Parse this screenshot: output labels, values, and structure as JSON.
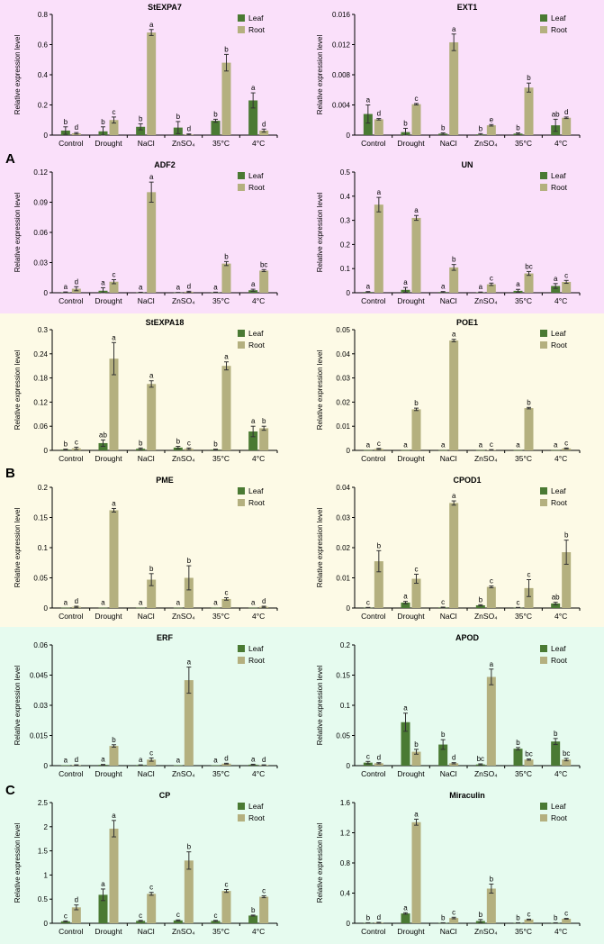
{
  "colors": {
    "leaf": "#4a7a33",
    "root": "#b4b07f",
    "bandA": "#fae0fa",
    "bandB": "#fdfae6",
    "bandC": "#e6fbef"
  },
  "figure": {
    "y_axis_label": "Relative expression level",
    "series_names": [
      "Leaf",
      "Root"
    ],
    "categories": [
      "Control",
      "Drought",
      "NaCl",
      "ZnSO₄",
      "35°C",
      "4°C"
    ],
    "panels": [
      "A",
      "B",
      "C"
    ]
  },
  "chart_data": [
    {
      "type": "bar",
      "panel": "A",
      "title": "StEXPA7",
      "ylim": [
        0,
        0.8
      ],
      "yticks": [
        "0",
        "0.2",
        "0.4",
        "0.6",
        "0.8"
      ],
      "categories": [
        "Control",
        "Drought",
        "NaCl",
        "ZnSO₄",
        "35°C",
        "4°C"
      ],
      "series": [
        {
          "name": "Leaf",
          "values": [
            0.03,
            0.025,
            0.055,
            0.05,
            0.095,
            0.23
          ],
          "errors": [
            0.025,
            0.03,
            0.02,
            0.04,
            0.01,
            0.05
          ],
          "letters": [
            "b",
            "b",
            "b",
            "b",
            "b",
            "a"
          ]
        },
        {
          "name": "Root",
          "values": [
            0.012,
            0.1,
            0.68,
            0.005,
            0.48,
            0.03
          ],
          "errors": [
            0.005,
            0.02,
            0.02,
            0.003,
            0.055,
            0.01
          ],
          "letters": [
            "d",
            "c",
            "a",
            "d",
            "b",
            "d"
          ]
        }
      ]
    },
    {
      "type": "bar",
      "panel": "A",
      "title": "EXT1",
      "ylim": [
        0,
        0.016
      ],
      "yticks": [
        "0",
        "0.004",
        "0.008",
        "0.012",
        "0.016"
      ],
      "categories": [
        "Control",
        "Drought",
        "NaCl",
        "ZnSO₄",
        "35°C",
        "4°C"
      ],
      "series": [
        {
          "name": "Leaf",
          "values": [
            0.0028,
            0.0004,
            0.0002,
            0.0001,
            0.0002,
            0.0013
          ],
          "errors": [
            0.0012,
            0.0005,
            0.0001,
            0.0001,
            0.0001,
            0.0008
          ],
          "letters": [
            "a",
            "b",
            "b",
            "b",
            "b",
            "ab"
          ]
        },
        {
          "name": "Root",
          "values": [
            0.0021,
            0.0041,
            0.0123,
            0.0013,
            0.0063,
            0.0023
          ],
          "errors": [
            0.0001,
            0.0001,
            0.0011,
            0.0001,
            0.0006,
            0.0001
          ],
          "letters": [
            "d",
            "c",
            "a",
            "e",
            "b",
            "d"
          ]
        }
      ]
    },
    {
      "type": "bar",
      "panel": "A",
      "title": "ADF2",
      "ylim": [
        0,
        0.12
      ],
      "yticks": [
        "0",
        "0.03",
        "0.06",
        "0.09",
        "0.12"
      ],
      "categories": [
        "Control",
        "Drought",
        "NaCl",
        "ZnSO₄",
        "35°C",
        "4°C"
      ],
      "series": [
        {
          "name": "Leaf",
          "values": [
            0.0005,
            0.002,
            0.0003,
            0.0002,
            0.0004,
            0.0025
          ],
          "errors": [
            0.0003,
            0.003,
            0.0002,
            0.0001,
            0.0002,
            0.001
          ],
          "letters": [
            "a",
            "a",
            "a",
            "a",
            "a",
            "a"
          ]
        },
        {
          "name": "Root",
          "values": [
            0.004,
            0.011,
            0.1,
            0.001,
            0.029,
            0.022
          ],
          "errors": [
            0.002,
            0.002,
            0.01,
            0.0005,
            0.002,
            0.001
          ],
          "letters": [
            "d",
            "c",
            "a",
            "d",
            "b",
            "bc"
          ]
        }
      ]
    },
    {
      "type": "bar",
      "panel": "A",
      "title": "UN",
      "ylim": [
        0,
        0.5
      ],
      "yticks": [
        "0",
        "0.1",
        "0.2",
        "0.3",
        "0.4",
        "0.5"
      ],
      "categories": [
        "Control",
        "Drought",
        "NaCl",
        "ZnSO₄",
        "35°C",
        "4°C"
      ],
      "series": [
        {
          "name": "Leaf",
          "values": [
            0.003,
            0.012,
            0.003,
            0.002,
            0.008,
            0.028
          ],
          "errors": [
            0.002,
            0.01,
            0.002,
            0.001,
            0.006,
            0.01
          ],
          "letters": [
            "a",
            "a",
            "a",
            "a",
            "a",
            "a"
          ]
        },
        {
          "name": "Root",
          "values": [
            0.365,
            0.31,
            0.105,
            0.035,
            0.08,
            0.045
          ],
          "errors": [
            0.03,
            0.01,
            0.012,
            0.005,
            0.008,
            0.006
          ],
          "letters": [
            "a",
            "a",
            "b",
            "c",
            "bc",
            "c"
          ]
        }
      ]
    },
    {
      "type": "bar",
      "panel": "B",
      "title": "StEXPA18",
      "ylim": [
        0,
        0.3
      ],
      "yticks": [
        "0",
        "0.06",
        "0.12",
        "0.18",
        "0.24",
        "0.3"
      ],
      "categories": [
        "Control",
        "Drought",
        "NaCl",
        "ZnSO₄",
        "35°C",
        "4°C"
      ],
      "series": [
        {
          "name": "Leaf",
          "values": [
            0.002,
            0.018,
            0.004,
            0.007,
            0.002,
            0.047
          ],
          "errors": [
            0.001,
            0.008,
            0.002,
            0.003,
            0.001,
            0.013
          ],
          "letters": [
            "b",
            "ab",
            "b",
            "b",
            "b",
            "a"
          ]
        },
        {
          "name": "Root",
          "values": [
            0.005,
            0.228,
            0.165,
            0.004,
            0.21,
            0.055
          ],
          "errors": [
            0.003,
            0.04,
            0.008,
            0.002,
            0.01,
            0.005
          ],
          "letters": [
            "c",
            "a",
            "a",
            "c",
            "a",
            "b"
          ]
        }
      ]
    },
    {
      "type": "bar",
      "panel": "B",
      "title": "POE1",
      "ylim": [
        0,
        0.05
      ],
      "yticks": [
        "0",
        "0.01",
        "0.02",
        "0.03",
        "0.04",
        "0.05"
      ],
      "categories": [
        "Control",
        "Drought",
        "NaCl",
        "ZnSO₄",
        "35°C",
        "4°C"
      ],
      "series": [
        {
          "name": "Leaf",
          "values": [
            0.0001,
            0.0001,
            0.0001,
            0.0001,
            0.0001,
            0.0001
          ],
          "errors": [
            0,
            0,
            0,
            0,
            0,
            0
          ],
          "letters": [
            "a",
            "a",
            "a",
            "a",
            "a",
            "a"
          ]
        },
        {
          "name": "Root",
          "values": [
            0.0006,
            0.017,
            0.0455,
            0.0002,
            0.0175,
            0.0008
          ],
          "errors": [
            0.0002,
            0.0005,
            0.0005,
            0.0001,
            0.0003,
            0.0002
          ],
          "letters": [
            "c",
            "b",
            "a",
            "c",
            "b",
            "c"
          ]
        }
      ]
    },
    {
      "type": "bar",
      "panel": "B",
      "title": "PME",
      "ylim": [
        0,
        0.2
      ],
      "yticks": [
        "0",
        "0.05",
        "0.1",
        "0.15",
        "0.2"
      ],
      "categories": [
        "Control",
        "Drought",
        "NaCl",
        "ZnSO₄",
        "35°C",
        "4°C"
      ],
      "series": [
        {
          "name": "Leaf",
          "values": [
            0.0005,
            0.0005,
            0.0005,
            0.0005,
            0.0005,
            0.0005
          ],
          "errors": [
            0,
            0,
            0,
            0,
            0,
            0
          ],
          "letters": [
            "a",
            "a",
            "a",
            "a",
            "a",
            "a"
          ]
        },
        {
          "name": "Root",
          "values": [
            0.002,
            0.162,
            0.047,
            0.05,
            0.015,
            0.002
          ],
          "errors": [
            0.001,
            0.003,
            0.01,
            0.02,
            0.002,
            0.001
          ],
          "letters": [
            "d",
            "a",
            "b",
            "b",
            "c",
            "d"
          ]
        }
      ]
    },
    {
      "type": "bar",
      "panel": "B",
      "title": "CPOD1",
      "ylim": [
        0,
        0.04
      ],
      "yticks": [
        "0",
        "0.01",
        "0.02",
        "0.03",
        "0.04"
      ],
      "categories": [
        "Control",
        "Drought",
        "NaCl",
        "ZnSO₄",
        "35°C",
        "4°C"
      ],
      "series": [
        {
          "name": "Leaf",
          "values": [
            0.0001,
            0.0018,
            0.0002,
            0.0009,
            0.0001,
            0.0015
          ],
          "errors": [
            0.0001,
            0.0004,
            0.0001,
            0.0002,
            0.0001,
            0.0004
          ],
          "letters": [
            "c",
            "a",
            "c",
            "b",
            "c",
            "ab"
          ]
        },
        {
          "name": "Root",
          "values": [
            0.0155,
            0.0097,
            0.0348,
            0.007,
            0.0066,
            0.0185
          ],
          "errors": [
            0.0035,
            0.0015,
            0.0007,
            0.0003,
            0.0028,
            0.004
          ],
          "letters": [
            "b",
            "c",
            "a",
            "c",
            "c",
            "b"
          ]
        }
      ]
    },
    {
      "type": "bar",
      "panel": "C",
      "title": "ERF",
      "ylim": [
        0,
        0.06
      ],
      "yticks": [
        "0",
        "0.015",
        "0.03",
        "0.045",
        "0.06"
      ],
      "categories": [
        "Control",
        "Drought",
        "NaCl",
        "ZnSO₄",
        "35°C",
        "4°C"
      ],
      "series": [
        {
          "name": "Leaf",
          "values": [
            0.0002,
            0.0004,
            0.0003,
            0.0002,
            0.0002,
            0.0005
          ],
          "errors": [
            0,
            0.0002,
            0.0001,
            0,
            0,
            0.0002
          ],
          "letters": [
            "a",
            "a",
            "a",
            "a",
            "a",
            "a"
          ]
        },
        {
          "name": "Root",
          "values": [
            0.0003,
            0.0098,
            0.003,
            0.0425,
            0.001,
            0.0003
          ],
          "errors": [
            0.0001,
            0.0006,
            0.0008,
            0.0065,
            0.0002,
            0.0001
          ],
          "letters": [
            "d",
            "b",
            "c",
            "a",
            "d",
            "d"
          ]
        }
      ]
    },
    {
      "type": "bar",
      "panel": "C",
      "title": "APOD",
      "ylim": [
        0,
        0.2
      ],
      "yticks": [
        "0",
        "0.05",
        "0.1",
        "0.15",
        "0.2"
      ],
      "categories": [
        "Control",
        "Drought",
        "NaCl",
        "ZnSO₄",
        "35°C",
        "4°C"
      ],
      "series": [
        {
          "name": "Leaf",
          "values": [
            0.005,
            0.072,
            0.035,
            0.002,
            0.028,
            0.04
          ],
          "errors": [
            0.002,
            0.015,
            0.008,
            0.001,
            0.002,
            0.005
          ],
          "letters": [
            "c",
            "a",
            "b",
            "bc",
            "b",
            "b"
          ]
        },
        {
          "name": "Root",
          "values": [
            0.004,
            0.023,
            0.004,
            0.147,
            0.01,
            0.01
          ],
          "errors": [
            0.001,
            0.004,
            0.001,
            0.013,
            0.001,
            0.002
          ],
          "letters": [
            "d",
            "b",
            "d",
            "a",
            "bc",
            "bc"
          ]
        }
      ]
    },
    {
      "type": "bar",
      "panel": "C",
      "title": "CP",
      "ylim": [
        0,
        2.5
      ],
      "yticks": [
        "0",
        "0.5",
        "1",
        "1.5",
        "2",
        "2.5"
      ],
      "categories": [
        "Control",
        "Drought",
        "NaCl",
        "ZnSO₄",
        "35°C",
        "4°C"
      ],
      "series": [
        {
          "name": "Leaf",
          "values": [
            0.04,
            0.59,
            0.05,
            0.06,
            0.05,
            0.16
          ],
          "errors": [
            0.01,
            0.12,
            0.01,
            0.01,
            0.01,
            0.01
          ],
          "letters": [
            "c",
            "a",
            "c",
            "c",
            "c",
            "b"
          ]
        },
        {
          "name": "Root",
          "values": [
            0.33,
            1.96,
            0.61,
            1.3,
            0.67,
            0.55
          ],
          "errors": [
            0.05,
            0.17,
            0.03,
            0.18,
            0.03,
            0.02
          ],
          "letters": [
            "d",
            "a",
            "c",
            "b",
            "c",
            "c"
          ]
        }
      ]
    },
    {
      "type": "bar",
      "panel": "C",
      "title": "Miraculin",
      "ylim": [
        0,
        1.6
      ],
      "yticks": [
        "0",
        "0.4",
        "0.8",
        "1.2",
        "1.6"
      ],
      "categories": [
        "Control",
        "Drought",
        "NaCl",
        "ZnSO₄",
        "35°C",
        "4°C"
      ],
      "series": [
        {
          "name": "Leaf",
          "values": [
            0.005,
            0.13,
            0.005,
            0.03,
            0.005,
            0.005
          ],
          "errors": [
            0.002,
            0.01,
            0.002,
            0.02,
            0.002,
            0.002
          ],
          "letters": [
            "b",
            "a",
            "b",
            "b",
            "b",
            "b"
          ]
        },
        {
          "name": "Root",
          "values": [
            0.01,
            1.34,
            0.07,
            0.46,
            0.05,
            0.06
          ],
          "errors": [
            0.003,
            0.04,
            0.01,
            0.06,
            0.005,
            0.005
          ],
          "letters": [
            "d",
            "a",
            "c",
            "b",
            "c",
            "c"
          ]
        }
      ]
    }
  ]
}
